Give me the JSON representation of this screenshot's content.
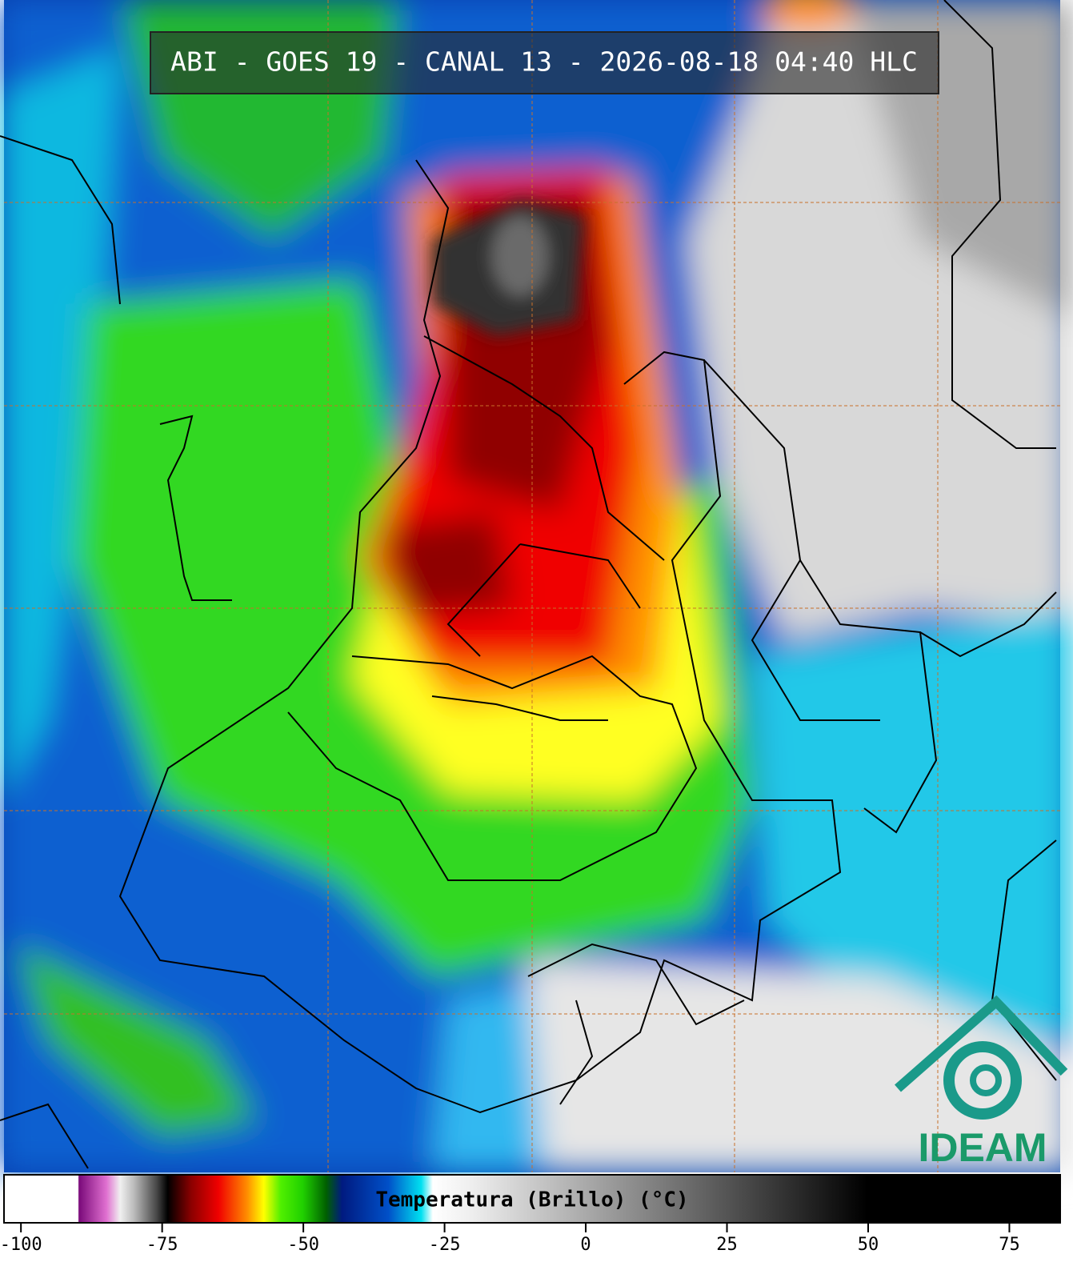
{
  "title": "ABI - GOES 19 - CANAL 13 - 2026-08-18 04:40 HLC",
  "colorbar": {
    "label": "Temperatura (Brillo) (°C)",
    "lim": [
      -103,
      84
    ],
    "ticks": [
      -100,
      -75,
      -50,
      -25,
      0,
      25,
      50,
      75
    ]
  },
  "logo": "IDEAM"
}
